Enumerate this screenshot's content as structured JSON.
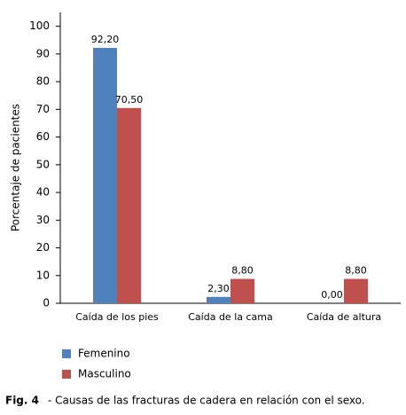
{
  "chart_data": {
    "type": "bar",
    "y_label": "Porcentaje de pacientes",
    "categories": [
      "Caída de los pies",
      "Caída de la cama",
      "Caída de altura"
    ],
    "series": [
      {
        "name": "Femenino",
        "color": "#4f81bd",
        "values": [
          92.2,
          2.3,
          0.0
        ],
        "value_labels": [
          "92,20",
          "2,30",
          "0,00"
        ]
      },
      {
        "name": "Masculino",
        "color": "#c0504d",
        "values": [
          70.5,
          8.8,
          8.8
        ],
        "value_labels": [
          "70,50",
          "8,80",
          "8,80"
        ]
      }
    ],
    "ylim": [
      0,
      105
    ],
    "yticks": [
      0,
      10,
      20,
      30,
      40,
      50,
      60,
      70,
      80,
      90,
      100
    ],
    "grid": false,
    "legend": "bottom-left",
    "caption_label": "Fig. 4",
    "caption": "- Causas de las fracturas de cadera en relación con el sexo."
  }
}
